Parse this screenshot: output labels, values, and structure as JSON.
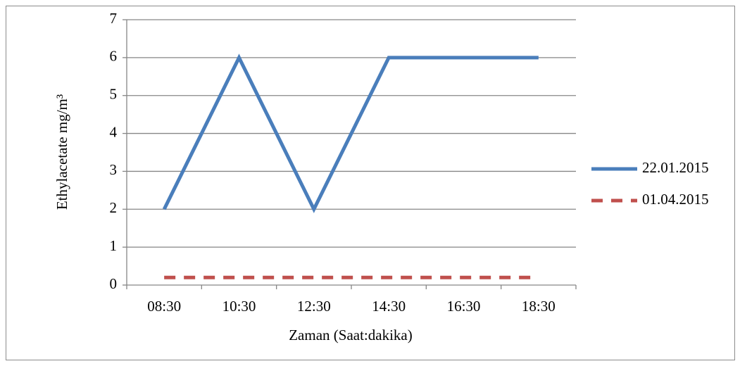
{
  "chart_data": {
    "type": "line",
    "xlabel": "Zaman (Saat:dakika)",
    "ylabel": "Ethylacetate mg/m³",
    "categories": [
      "08:30",
      "10:30",
      "12:30",
      "14:30",
      "16:30",
      "18:30"
    ],
    "series": [
      {
        "name": "22.01.2015",
        "color": "#4a7ebb",
        "linestyle": "solid",
        "values": [
          2,
          6,
          2,
          6,
          6,
          6
        ]
      },
      {
        "name": "01.04.2015",
        "color": "#c0504d",
        "linestyle": "dashed",
        "values": [
          0.2,
          0.2,
          0.2,
          0.2,
          0.2,
          0.2
        ]
      }
    ],
    "ylim": [
      0,
      7
    ],
    "yticks": [
      0,
      1,
      2,
      3,
      4,
      5,
      6,
      7
    ],
    "grid": true,
    "legend": "right"
  }
}
